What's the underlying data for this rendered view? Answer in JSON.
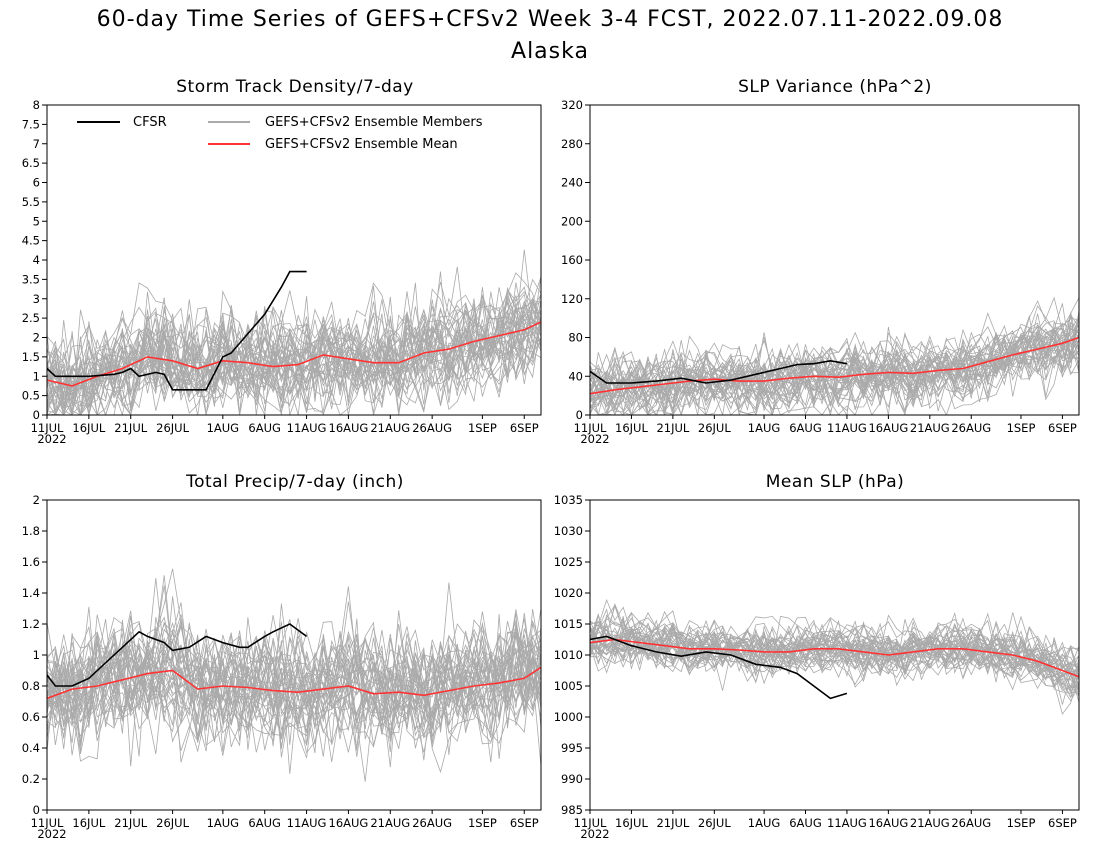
{
  "figure": {
    "title": "60-day Time Series of GEFS+CFSv2 Week 3-4 FCST, 2022.07.11-2022.09.08",
    "subtitle": "Alaska"
  },
  "legend": [
    {
      "label": "CFSR",
      "color": "#000000"
    },
    {
      "label": "GEFS+CFSv2 Ensemble Members",
      "color": "#aaaaaa"
    },
    {
      "label": "GEFS+CFSv2 Ensemble Mean",
      "color": "#ff3333"
    }
  ],
  "colors": {
    "cfsr": "#000000",
    "members": "#aaaaaa",
    "mean": "#ff3333"
  },
  "x_axis": {
    "start": "2022-07-11",
    "end": "2022-09-08",
    "tick_days": [
      0,
      5,
      10,
      15,
      21,
      26,
      31,
      36,
      41,
      46,
      52,
      57
    ],
    "tick_labels": [
      "11JUL",
      "16JUL",
      "21JUL",
      "26JUL",
      "1AUG",
      "6AUG",
      "11AUG",
      "16AUG",
      "21AUG",
      "26AUG",
      "1SEP",
      "6SEP"
    ],
    "year_label": "2022"
  },
  "chart_data": [
    {
      "type": "line",
      "title": "Storm Track Density/7-day",
      "ylim": [
        0,
        8
      ],
      "yticks": [
        0,
        0.5,
        1,
        1.5,
        2,
        2.5,
        3,
        3.5,
        4,
        4.5,
        5,
        5.5,
        6,
        6.5,
        7,
        7.5,
        8
      ],
      "ytick_labels": [
        "0",
        "0.5",
        "1",
        "1.5",
        "2",
        "2.5",
        "3",
        "3.5",
        "4",
        "4.5",
        "5",
        "5.5",
        "6",
        "6.5",
        "7",
        "7.5",
        "8"
      ],
      "series": [
        {
          "name": "CFSR",
          "x": [
            "2022-07-11",
            "2022-07-12",
            "2022-07-13",
            "2022-07-16",
            "2022-07-19",
            "2022-07-20",
            "2022-07-21",
            "2022-07-22",
            "2022-07-24",
            "2022-07-25",
            "2022-07-26",
            "2022-07-27",
            "2022-07-28",
            "2022-07-30",
            "2022-08-01",
            "2022-08-02",
            "2022-08-04",
            "2022-08-06",
            "2022-08-08",
            "2022-08-09",
            "2022-08-11"
          ],
          "y": [
            1.2,
            1.0,
            1.0,
            1.0,
            1.05,
            1.1,
            1.2,
            1.0,
            1.1,
            1.05,
            0.65,
            0.65,
            0.65,
            0.65,
            1.5,
            1.6,
            2.1,
            2.6,
            3.3,
            3.7,
            3.7
          ]
        },
        {
          "name": "GEFS+CFSv2 Ensemble Mean",
          "x": [
            "2022-07-11",
            "2022-07-14",
            "2022-07-17",
            "2022-07-20",
            "2022-07-23",
            "2022-07-26",
            "2022-07-29",
            "2022-08-01",
            "2022-08-04",
            "2022-08-07",
            "2022-08-10",
            "2022-08-13",
            "2022-08-16",
            "2022-08-19",
            "2022-08-22",
            "2022-08-25",
            "2022-08-28",
            "2022-08-31",
            "2022-09-03",
            "2022-09-06",
            "2022-09-08"
          ],
          "y": [
            0.9,
            0.75,
            1.0,
            1.2,
            1.5,
            1.4,
            1.2,
            1.4,
            1.35,
            1.25,
            1.3,
            1.55,
            1.45,
            1.35,
            1.35,
            1.6,
            1.7,
            1.9,
            2.05,
            2.2,
            2.4
          ]
        }
      ]
    },
    {
      "type": "line",
      "title": "SLP Variance (hPa^2)",
      "ylim": [
        0,
        320
      ],
      "yticks": [
        0,
        40,
        80,
        120,
        160,
        200,
        240,
        280,
        320
      ],
      "ytick_labels": [
        "0",
        "40",
        "80",
        "120",
        "160",
        "200",
        "240",
        "280",
        "320"
      ],
      "series": [
        {
          "name": "CFSR",
          "x": [
            "2022-07-11",
            "2022-07-13",
            "2022-07-16",
            "2022-07-19",
            "2022-07-22",
            "2022-07-25",
            "2022-07-28",
            "2022-07-31",
            "2022-08-03",
            "2022-08-05",
            "2022-08-07",
            "2022-08-09",
            "2022-08-11"
          ],
          "y": [
            45,
            33,
            33,
            35,
            38,
            33,
            36,
            42,
            48,
            52,
            53,
            56,
            53
          ]
        },
        {
          "name": "GEFS+CFSv2 Ensemble Mean",
          "x": [
            "2022-07-11",
            "2022-07-14",
            "2022-07-17",
            "2022-07-20",
            "2022-07-23",
            "2022-07-26",
            "2022-07-29",
            "2022-08-01",
            "2022-08-04",
            "2022-08-07",
            "2022-08-10",
            "2022-08-13",
            "2022-08-16",
            "2022-08-19",
            "2022-08-22",
            "2022-08-25",
            "2022-08-28",
            "2022-08-31",
            "2022-09-03",
            "2022-09-06",
            "2022-09-08"
          ],
          "y": [
            22,
            26,
            29,
            32,
            35,
            37,
            35,
            35,
            38,
            40,
            39,
            42,
            44,
            43,
            46,
            48,
            55,
            62,
            68,
            74,
            80
          ]
        }
      ]
    },
    {
      "type": "line",
      "title": "Total Precip/7-day (inch)",
      "ylim": [
        0,
        2
      ],
      "yticks": [
        0,
        0.2,
        0.4,
        0.6,
        0.8,
        1,
        1.2,
        1.4,
        1.6,
        1.8,
        2
      ],
      "ytick_labels": [
        "0",
        "0.2",
        "0.4",
        "0.6",
        "0.8",
        "1",
        "1.2",
        "1.4",
        "1.6",
        "1.8",
        "2"
      ],
      "series": [
        {
          "name": "CFSR",
          "x": [
            "2022-07-11",
            "2022-07-12",
            "2022-07-14",
            "2022-07-16",
            "2022-07-18",
            "2022-07-20",
            "2022-07-22",
            "2022-07-23",
            "2022-07-25",
            "2022-07-26",
            "2022-07-28",
            "2022-07-30",
            "2022-08-01",
            "2022-08-03",
            "2022-08-04",
            "2022-08-06",
            "2022-08-07",
            "2022-08-09",
            "2022-08-11"
          ],
          "y": [
            0.87,
            0.8,
            0.8,
            0.85,
            0.95,
            1.05,
            1.15,
            1.12,
            1.08,
            1.03,
            1.05,
            1.12,
            1.08,
            1.05,
            1.05,
            1.12,
            1.15,
            1.2,
            1.12
          ]
        },
        {
          "name": "GEFS+CFSv2 Ensemble Mean",
          "x": [
            "2022-07-11",
            "2022-07-14",
            "2022-07-17",
            "2022-07-20",
            "2022-07-23",
            "2022-07-26",
            "2022-07-29",
            "2022-08-01",
            "2022-08-04",
            "2022-08-07",
            "2022-08-10",
            "2022-08-13",
            "2022-08-16",
            "2022-08-19",
            "2022-08-22",
            "2022-08-25",
            "2022-08-28",
            "2022-08-31",
            "2022-09-03",
            "2022-09-06",
            "2022-09-08"
          ],
          "y": [
            0.72,
            0.78,
            0.8,
            0.84,
            0.88,
            0.9,
            0.78,
            0.8,
            0.79,
            0.77,
            0.76,
            0.78,
            0.8,
            0.75,
            0.76,
            0.74,
            0.77,
            0.8,
            0.82,
            0.85,
            0.92
          ]
        }
      ]
    },
    {
      "type": "line",
      "title": "Mean SLP (hPa)",
      "ylim": [
        985,
        1035
      ],
      "yticks": [
        985,
        990,
        995,
        1000,
        1005,
        1010,
        1015,
        1020,
        1025,
        1030,
        1035
      ],
      "ytick_labels": [
        "985",
        "990",
        "995",
        "1000",
        "1005",
        "1010",
        "1015",
        "1020",
        "1025",
        "1030",
        "1035"
      ],
      "series": [
        {
          "name": "CFSR",
          "x": [
            "2022-07-11",
            "2022-07-13",
            "2022-07-16",
            "2022-07-19",
            "2022-07-22",
            "2022-07-25",
            "2022-07-28",
            "2022-07-31",
            "2022-08-03",
            "2022-08-05",
            "2022-08-07",
            "2022-08-09",
            "2022-08-11"
          ],
          "y": [
            1012.5,
            1013,
            1011.5,
            1010.5,
            1009.8,
            1010.5,
            1010,
            1008.5,
            1008,
            1007,
            1005,
            1003,
            1003.8
          ]
        },
        {
          "name": "GEFS+CFSv2 Ensemble Mean",
          "x": [
            "2022-07-11",
            "2022-07-14",
            "2022-07-17",
            "2022-07-20",
            "2022-07-23",
            "2022-07-26",
            "2022-07-29",
            "2022-08-01",
            "2022-08-04",
            "2022-08-07",
            "2022-08-10",
            "2022-08-13",
            "2022-08-16",
            "2022-08-19",
            "2022-08-22",
            "2022-08-25",
            "2022-08-28",
            "2022-08-31",
            "2022-09-03",
            "2022-09-06",
            "2022-09-08"
          ],
          "y": [
            1012,
            1012.5,
            1012,
            1011.5,
            1011,
            1011,
            1010.8,
            1010.5,
            1010.5,
            1011,
            1011,
            1010.5,
            1010,
            1010.5,
            1011,
            1011,
            1010.5,
            1010,
            1009,
            1007.5,
            1006.5
          ]
        }
      ]
    }
  ]
}
